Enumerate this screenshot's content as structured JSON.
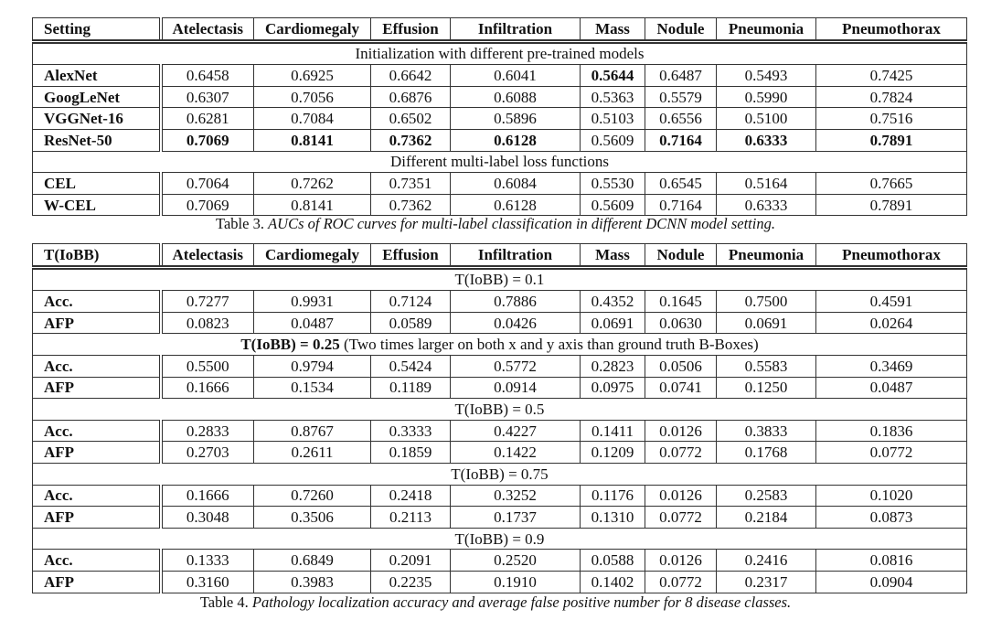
{
  "columns": [
    "Atelectasis",
    "Cardiomegaly",
    "Effusion",
    "Infiltration",
    "Mass",
    "Nodule",
    "Pneumonia",
    "Pneumothorax"
  ],
  "table3": {
    "header_first": "Setting",
    "sections": [
      {
        "title": "Initialization with different pre-trained models",
        "rows": [
          {
            "label": "AlexNet",
            "values": [
              "0.6458",
              "0.6925",
              "0.6642",
              "0.6041",
              "0.5644",
              "0.6487",
              "0.5493",
              "0.7425"
            ],
            "bold": [
              4
            ]
          },
          {
            "label": "GoogLeNet",
            "values": [
              "0.6307",
              "0.7056",
              "0.6876",
              "0.6088",
              "0.5363",
              "0.5579",
              "0.5990",
              "0.7824"
            ],
            "bold": []
          },
          {
            "label": "VGGNet-16",
            "values": [
              "0.6281",
              "0.7084",
              "0.6502",
              "0.5896",
              "0.5103",
              "0.6556",
              "0.5100",
              "0.7516"
            ],
            "bold": []
          },
          {
            "label": "ResNet-50",
            "values": [
              "0.7069",
              "0.8141",
              "0.7362",
              "0.6128",
              "0.5609",
              "0.7164",
              "0.6333",
              "0.7891"
            ],
            "bold": [
              0,
              1,
              2,
              3,
              5,
              6,
              7
            ]
          }
        ]
      },
      {
        "title": "Different multi-label loss functions",
        "rows": [
          {
            "label": "CEL",
            "values": [
              "0.7064",
              "0.7262",
              "0.7351",
              "0.6084",
              "0.5530",
              "0.6545",
              "0.5164",
              "0.7665"
            ],
            "bold": []
          },
          {
            "label": "W-CEL",
            "values": [
              "0.7069",
              "0.8141",
              "0.7362",
              "0.6128",
              "0.5609",
              "0.7164",
              "0.6333",
              "0.7891"
            ],
            "bold": []
          }
        ]
      }
    ],
    "caption_label": "Table 3.",
    "caption_text": "AUCs of ROC curves for multi-label classification in different DCNN model setting."
  },
  "table4": {
    "header_first": "T(IoBB)",
    "sections": [
      {
        "title": "T(IoBB) = 0.1",
        "rows": [
          {
            "label": "Acc.",
            "values": [
              "0.7277",
              "0.9931",
              "0.7124",
              "0.7886",
              "0.4352",
              "0.1645",
              "0.7500",
              "0.4591"
            ],
            "bold": []
          },
          {
            "label": "AFP",
            "values": [
              "0.0823",
              "0.0487",
              "0.0589",
              "0.0426",
              "0.0691",
              "0.0630",
              "0.0691",
              "0.0264"
            ],
            "bold": []
          }
        ]
      },
      {
        "title_bold": "T(IoBB) = 0.25",
        "title": " (Two times larger on both x and y axis than ground truth B-Boxes)",
        "rows": [
          {
            "label": "Acc.",
            "values": [
              "0.5500",
              "0.9794",
              "0.5424",
              "0.5772",
              "0.2823",
              "0.0506",
              "0.5583",
              "0.3469"
            ],
            "bold": []
          },
          {
            "label": "AFP",
            "values": [
              "0.1666",
              "0.1534",
              "0.1189",
              "0.0914",
              "0.0975",
              "0.0741",
              "0.1250",
              "0.0487"
            ],
            "bold": []
          }
        ]
      },
      {
        "title": "T(IoBB) = 0.5",
        "rows": [
          {
            "label": "Acc.",
            "values": [
              "0.2833",
              "0.8767",
              "0.3333",
              "0.4227",
              "0.1411",
              "0.0126",
              "0.3833",
              "0.1836"
            ],
            "bold": []
          },
          {
            "label": "AFP",
            "values": [
              "0.2703",
              "0.2611",
              "0.1859",
              "0.1422",
              "0.1209",
              "0.0772",
              "0.1768",
              "0.0772"
            ],
            "bold": []
          }
        ]
      },
      {
        "title": "T(IoBB) = 0.75",
        "rows": [
          {
            "label": "Acc.",
            "values": [
              "0.1666",
              "0.7260",
              "0.2418",
              "0.3252",
              "0.1176",
              "0.0126",
              "0.2583",
              "0.1020"
            ],
            "bold": []
          },
          {
            "label": "AFP",
            "values": [
              "0.3048",
              "0.3506",
              "0.2113",
              "0.1737",
              "0.1310",
              "0.0772",
              "0.2184",
              "0.0873"
            ],
            "bold": []
          }
        ]
      },
      {
        "title": "T(IoBB) = 0.9",
        "rows": [
          {
            "label": "Acc.",
            "values": [
              "0.1333",
              "0.6849",
              "0.2091",
              "0.2520",
              "0.0588",
              "0.0126",
              "0.2416",
              "0.0816"
            ],
            "bold": []
          },
          {
            "label": "AFP",
            "values": [
              "0.3160",
              "0.3983",
              "0.2235",
              "0.1910",
              "0.1402",
              "0.0772",
              "0.2317",
              "0.0904"
            ],
            "bold": []
          }
        ]
      }
    ],
    "caption_label": "Table 4.",
    "caption_text": "Pathology localization accuracy and average false positive number for 8 disease classes."
  }
}
